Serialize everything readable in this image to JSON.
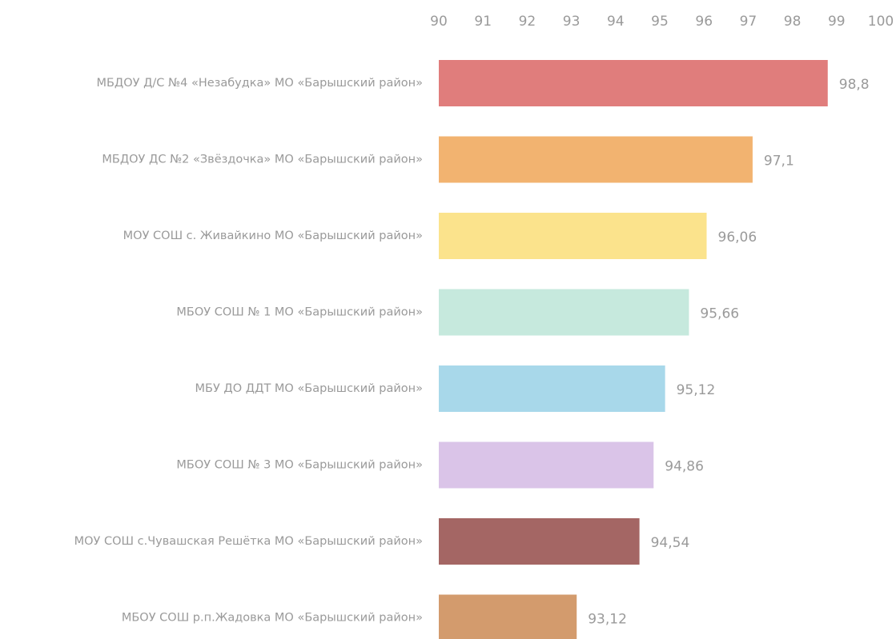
{
  "chart_data": {
    "type": "barh",
    "categories": [
      "МБДОУ Д/С №4 «Незабудка» МО «Барышский район»",
      "МБДОУ ДС №2 «Звёздочка» МО «Барышский район»",
      "МОУ СОШ с. Живайкино МО «Барышский район»",
      "МБОУ СОШ № 1 МО «Барышский район»",
      "МБУ ДО ДДТ МО «Барышский район»",
      "МБОУ СОШ № 3 МО «Барышский район»",
      "МОУ СОШ с.Чувашская Решётка МО «Барышский район»",
      "МБОУ СОШ р.п.Жадовка МО «Барышский район»"
    ],
    "values": [
      98.8,
      97.1,
      96.06,
      95.66,
      95.12,
      94.86,
      94.54,
      93.12
    ],
    "value_labels": [
      "98,8",
      "97,1",
      "96,06",
      "95,66",
      "95,12",
      "94,86",
      "94,54",
      "93,12"
    ],
    "colors": [
      "#e07d7c",
      "#f2b370",
      "#fbe38c",
      "#c6e9dd",
      "#a8d8ea",
      "#dac4e8",
      "#a46664",
      "#d39b6d"
    ],
    "xlim": [
      90,
      100
    ],
    "xticks": [
      90,
      91,
      92,
      93,
      94,
      95,
      96,
      97,
      98,
      99,
      100
    ],
    "grid": false
  }
}
